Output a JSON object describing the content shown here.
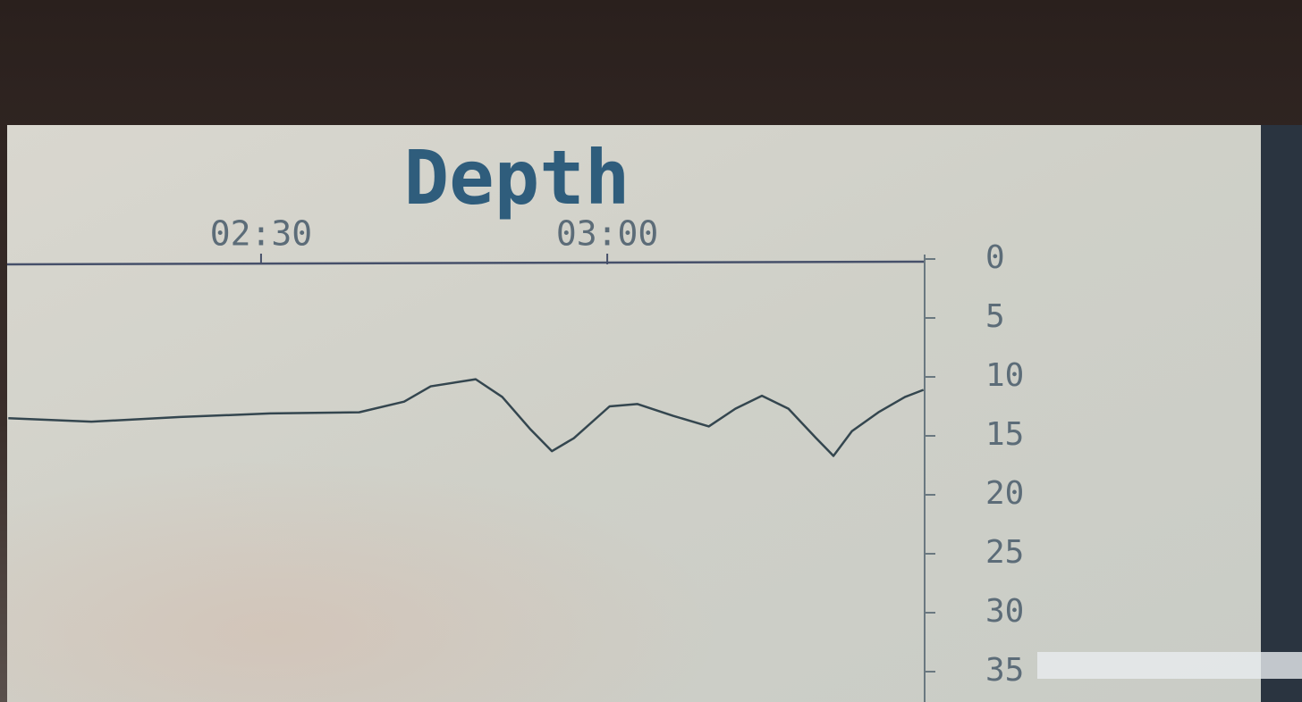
{
  "chart_data": {
    "type": "line",
    "title": "Depth",
    "x": [
      128.1,
      135.3,
      143.0,
      150.8,
      158.5,
      162.4,
      164.7,
      168.6,
      170.9,
      173.3,
      175.2,
      177.1,
      180.2,
      182.6,
      185.7,
      188.8,
      191.1,
      193.4,
      195.7,
      198.1,
      199.6,
      201.2,
      203.5,
      205.8,
      207.4
    ],
    "values": [
      13.5,
      13.8,
      13.4,
      13.1,
      13.0,
      12.1,
      10.8,
      10.2,
      11.7,
      14.4,
      16.3,
      15.2,
      12.5,
      12.3,
      13.3,
      14.2,
      12.7,
      11.6,
      12.7,
      15.2,
      16.7,
      14.6,
      13.0,
      11.7,
      11.1
    ],
    "color": "#34464f",
    "xlim": [
      128,
      207.5
    ],
    "xticks": [
      {
        "value": 150,
        "label": "02:30"
      },
      {
        "value": 180,
        "label": "03:00"
      }
    ],
    "ylim": [
      0,
      35
    ],
    "yticks": [
      0,
      5,
      10,
      15,
      20,
      25,
      30,
      35
    ],
    "y_inverted": true
  }
}
